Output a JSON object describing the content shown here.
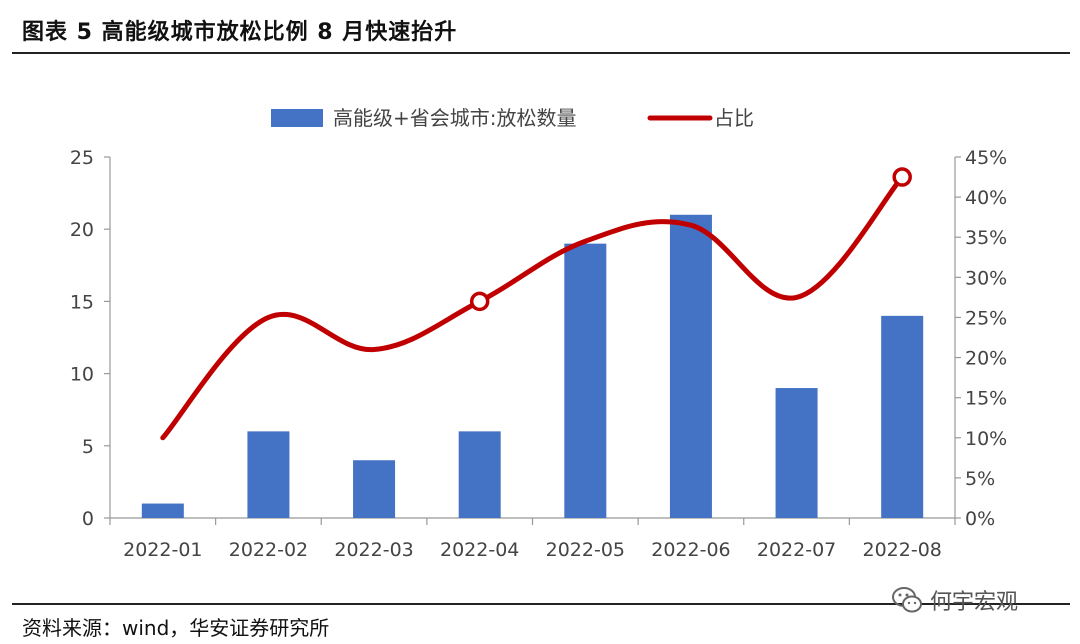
{
  "header": {
    "title": "图表 5 高能级城市放松比例 8 月快速抬升"
  },
  "footer": {
    "source": "资料来源：wind，华安证券研究所"
  },
  "watermark": {
    "text": "何宇宏观",
    "icon": "wechat-icon"
  },
  "chart_data": {
    "type": "bar",
    "categories": [
      "2022-01",
      "2022-02",
      "2022-03",
      "2022-04",
      "2022-05",
      "2022-06",
      "2022-07",
      "2022-08"
    ],
    "series": [
      {
        "name": "高能级+省会城市:放松数量",
        "type": "bar",
        "axis": "left",
        "color": "#4472C4",
        "values": [
          1,
          6,
          4,
          6,
          19,
          21,
          9,
          14
        ]
      },
      {
        "name": "占比",
        "type": "line",
        "axis": "right",
        "color": "#C00000",
        "smooth": true,
        "values": [
          0.1,
          0.25,
          0.21,
          0.27,
          0.345,
          0.365,
          0.275,
          0.425
        ],
        "markers_at": [
          "2022-04",
          "2022-08"
        ]
      }
    ],
    "y_left": {
      "ylim": [
        0,
        25
      ],
      "ticks": [
        "0",
        "5",
        "10",
        "15",
        "20",
        "25"
      ]
    },
    "y_right": {
      "ylim": [
        0,
        0.45
      ],
      "ticks": [
        "0%",
        "5%",
        "10%",
        "15%",
        "20%",
        "25%",
        "30%",
        "35%",
        "40%",
        "45%"
      ]
    },
    "legend": "top-center",
    "grid": false
  }
}
